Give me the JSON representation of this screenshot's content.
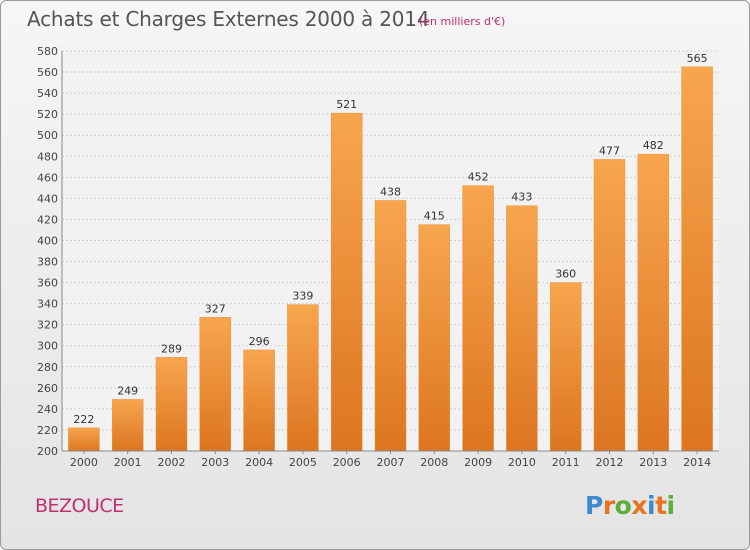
{
  "header": {
    "title": "Achats et Charges Externes 2000 à 2014",
    "subtitle": "(en milliers d'€)"
  },
  "footer": {
    "commune": "BEZOUCE",
    "logo_text": "Proxiti"
  },
  "colors": {
    "bar_light": "#f7a64e",
    "bar_dark": "#dd7520",
    "accent": "#c0306e",
    "logo_letters": [
      "#3b8bd0",
      "#e8731a",
      "#5cae3a",
      "#e8731a",
      "#3b8bd0",
      "#e8731a",
      "#5cae3a"
    ]
  },
  "chart_data": {
    "type": "bar",
    "categories": [
      "2000",
      "2001",
      "2002",
      "2003",
      "2004",
      "2005",
      "2006",
      "2007",
      "2008",
      "2009",
      "2010",
      "2011",
      "2012",
      "2013",
      "2014"
    ],
    "values": [
      222,
      249,
      289,
      327,
      296,
      339,
      521,
      438,
      415,
      452,
      433,
      360,
      477,
      482,
      565
    ],
    "ylim": [
      200,
      580
    ],
    "yticks": [
      200,
      220,
      240,
      260,
      280,
      300,
      320,
      340,
      360,
      380,
      400,
      420,
      440,
      460,
      480,
      500,
      520,
      540,
      560,
      580
    ],
    "grid": true,
    "value_labels": true
  }
}
